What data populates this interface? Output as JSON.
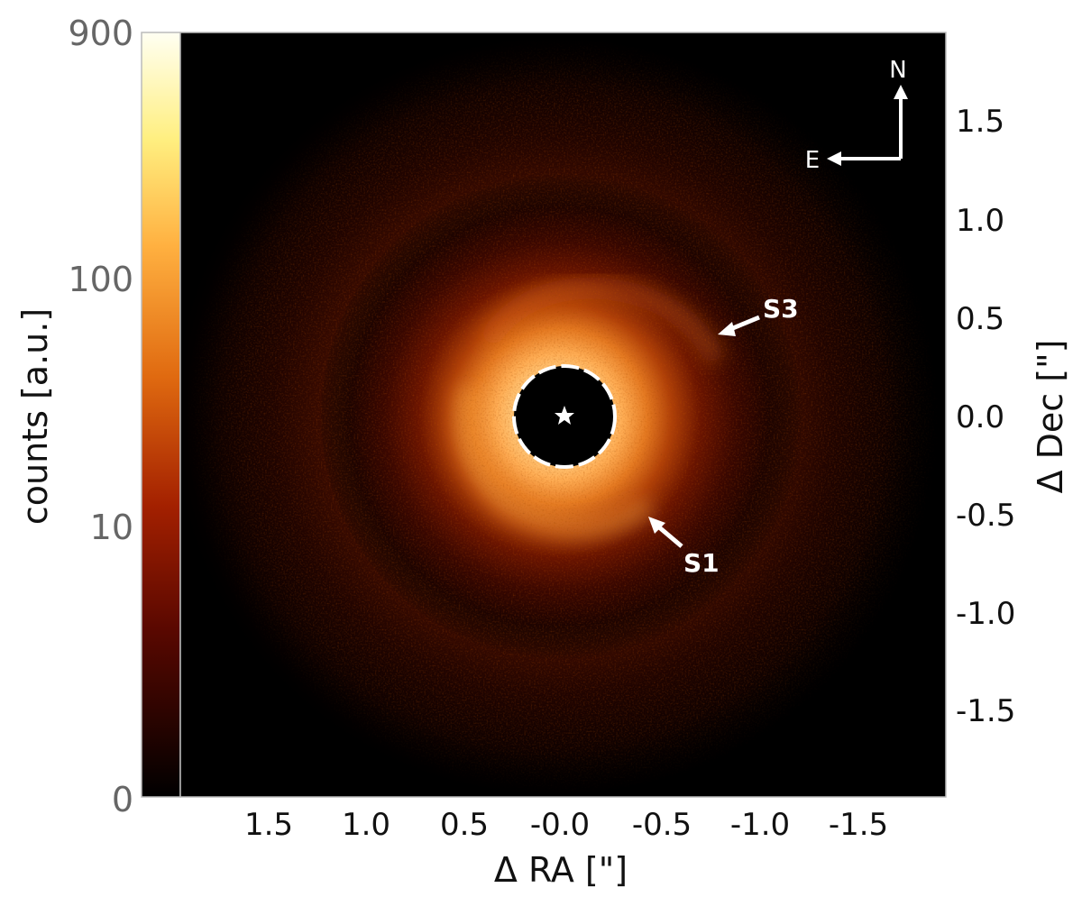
{
  "colorbar": {
    "label": "counts [a.u.]",
    "ticks": [
      "900",
      "100",
      "10",
      "0"
    ],
    "scale": "log-like",
    "colors": [
      "#000000",
      "#7a0c00",
      "#d44a00",
      "#ff9a1a",
      "#ffe060",
      "#fffff0"
    ]
  },
  "image": {
    "x_label": "Δ RA [\"]",
    "y_label": "Δ Dec [\"]",
    "x_ticks": [
      "1.5",
      "1.0",
      "0.5",
      "-0.0",
      "-0.5",
      "-1.0",
      "-1.5"
    ],
    "y_ticks": [
      "1.5",
      "1.0",
      "0.5",
      "0.0",
      "-0.5",
      "-1.0",
      "-1.5"
    ],
    "annotations": [
      "S3",
      "S1"
    ],
    "compass": {
      "north": "N",
      "east": "E"
    },
    "star_marker": "star-icon",
    "mask": "coronagraph-mask"
  }
}
